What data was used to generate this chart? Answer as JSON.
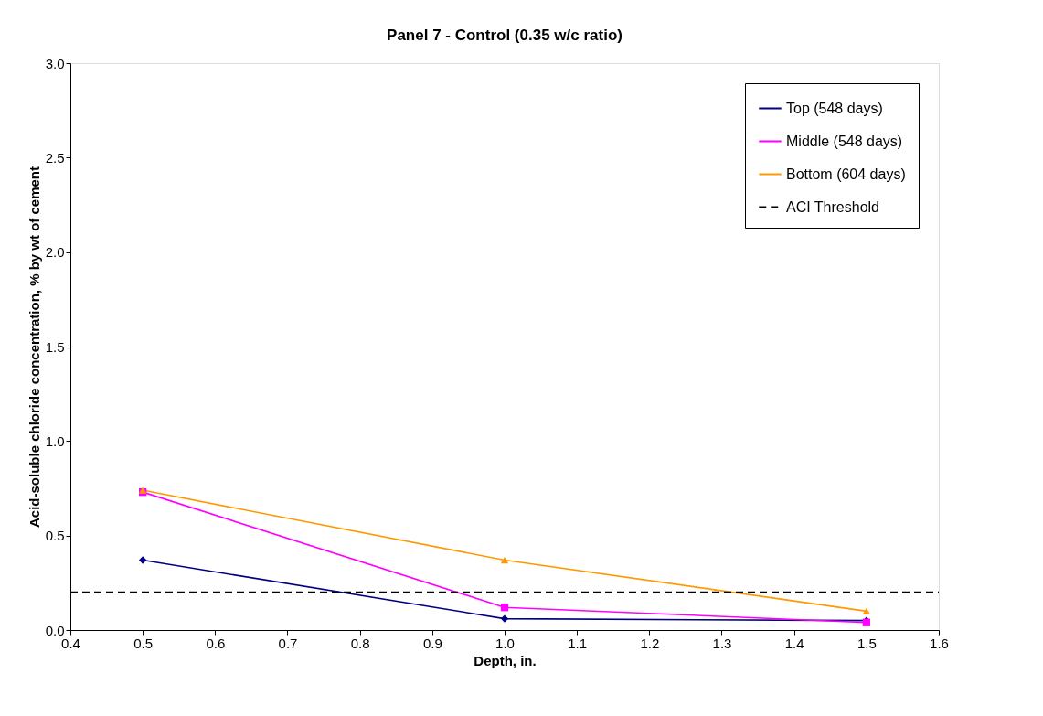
{
  "chart_data": {
    "type": "line",
    "title": "Panel 7 - Control (0.35 w/c ratio)",
    "xlabel": "Depth, in.",
    "ylabel": "Acid-soluble chloride concentration, % by wt of cement",
    "x": [
      0.5,
      1.0,
      1.5
    ],
    "series": [
      {
        "name": "Top (548 days)",
        "color": "#000080",
        "marker": "diamond",
        "values": [
          0.37,
          0.06,
          0.05
        ]
      },
      {
        "name": "Middle (548 days)",
        "color": "#ff00ff",
        "marker": "square",
        "values": [
          0.73,
          0.12,
          0.04
        ]
      },
      {
        "name": "Bottom (604 days)",
        "color": "#ff9900",
        "marker": "triangle",
        "values": [
          0.74,
          0.37,
          0.1
        ]
      }
    ],
    "ref_lines": [
      {
        "axis": "y",
        "value": 0.2,
        "label": "ACI Threshold",
        "color": "#000000",
        "line_style": "dashed"
      }
    ],
    "xlim": [
      0.4,
      1.6
    ],
    "xticks": [
      {
        "value": 0.4,
        "label": "0.4"
      },
      {
        "value": 0.5,
        "label": "0.5"
      },
      {
        "value": 0.6,
        "label": "0.6"
      },
      {
        "value": 0.7,
        "label": "0.7"
      },
      {
        "value": 0.8,
        "label": "0.8"
      },
      {
        "value": 0.9,
        "label": "0.9"
      },
      {
        "value": 1.0,
        "label": "1.0"
      },
      {
        "value": 1.1,
        "label": "1.1"
      },
      {
        "value": 1.2,
        "label": "1.2"
      },
      {
        "value": 1.3,
        "label": "1.3"
      },
      {
        "value": 1.4,
        "label": "1.4"
      },
      {
        "value": 1.5,
        "label": "1.5"
      },
      {
        "value": 1.6,
        "label": "1.6"
      }
    ],
    "ylim": [
      0,
      3.0
    ],
    "yticks": [
      {
        "value": 0,
        "label": "0.0"
      },
      {
        "value": 0.5,
        "label": "0.5"
      },
      {
        "value": 1.0,
        "label": "1.0"
      },
      {
        "value": 1.5,
        "label": "1.5"
      },
      {
        "value": 2.0,
        "label": "2.0"
      },
      {
        "value": 2.5,
        "label": "2.5"
      },
      {
        "value": 3.0,
        "label": "3.0"
      }
    ],
    "grid": false,
    "legend": "top right"
  }
}
